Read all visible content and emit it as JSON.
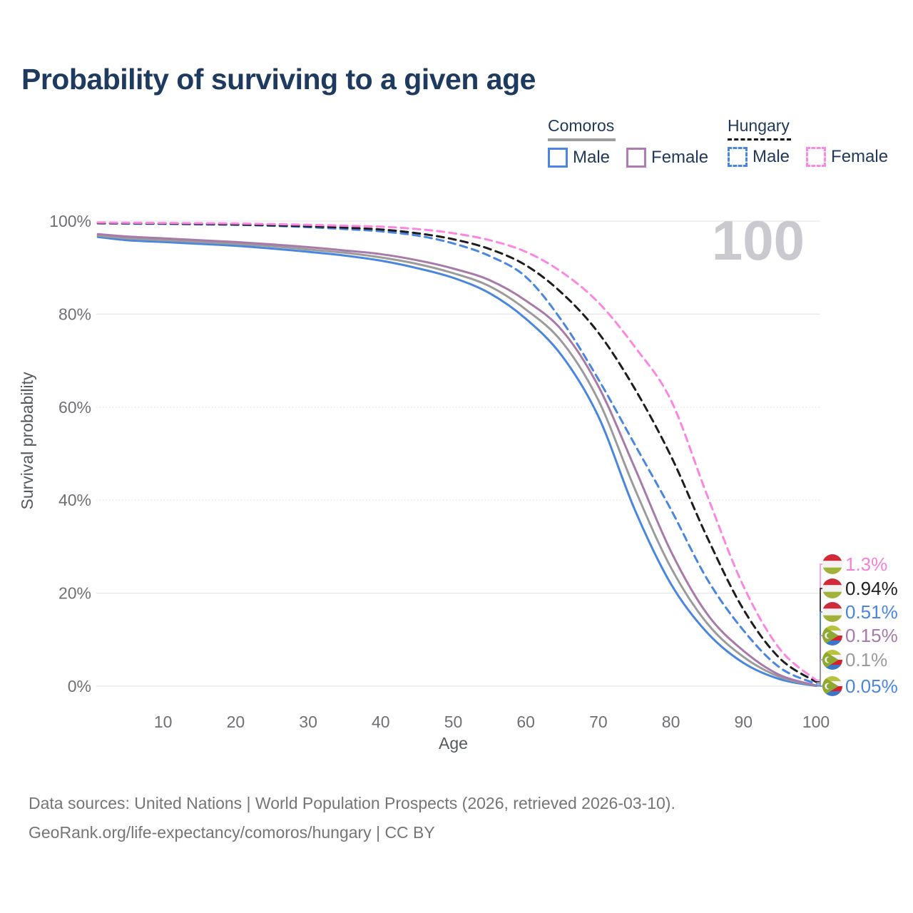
{
  "title": "Probability of surviving to a given age",
  "watermark": "100",
  "legend": {
    "groups": [
      {
        "name": "Comoros",
        "line_style": "solid",
        "underline_color": "#9e9e9e",
        "items": [
          {
            "label": "Male",
            "color": "#4a86e0",
            "dashed": false
          },
          {
            "label": "Female",
            "color": "#b07ab5",
            "dashed": false
          }
        ]
      },
      {
        "name": "Hungary",
        "line_style": "dashed",
        "underline_color": "#141414",
        "items": [
          {
            "label": "Male",
            "color": "#4a86e0",
            "dashed": true
          },
          {
            "label": "Female",
            "color": "#fb8ae4",
            "dashed": true
          }
        ]
      }
    ]
  },
  "axes": {
    "y_title": "Survival probability",
    "x_title": "Age",
    "y_ticks": [
      {
        "value": 0,
        "label": "0%",
        "style": "solid"
      },
      {
        "value": 20,
        "label": "20%",
        "style": "solid"
      },
      {
        "value": 40,
        "label": "40%",
        "style": "dotted"
      },
      {
        "value": 60,
        "label": "60%",
        "style": "dotted"
      },
      {
        "value": 80,
        "label": "80%",
        "style": "solid"
      },
      {
        "value": 100,
        "label": "100%",
        "style": "solid"
      }
    ],
    "x_ticks": [
      10,
      20,
      30,
      40,
      50,
      60,
      70,
      80,
      90,
      100
    ]
  },
  "chart_data": {
    "type": "line",
    "title": "Probability of surviving to a given age",
    "xlabel": "Age",
    "ylabel": "Survival probability",
    "xlim": [
      0,
      100
    ],
    "ylim": [
      0,
      100
    ],
    "y_unit": "%",
    "grid": true,
    "series": [
      {
        "name": "Comoros Male",
        "country": "Comoros",
        "sex": "Male",
        "color": "#4a86e0",
        "dashed": false,
        "points": [
          [
            1,
            96.6
          ],
          [
            5,
            95.9
          ],
          [
            10,
            95.5
          ],
          [
            15,
            95.1
          ],
          [
            20,
            94.7
          ],
          [
            25,
            94.1
          ],
          [
            30,
            93.4
          ],
          [
            35,
            92.6
          ],
          [
            40,
            91.5
          ],
          [
            45,
            89.9
          ],
          [
            50,
            87.8
          ],
          [
            55,
            84.5
          ],
          [
            60,
            79.0
          ],
          [
            65,
            71.0
          ],
          [
            70,
            58.0
          ],
          [
            75,
            38.0
          ],
          [
            80,
            22.0
          ],
          [
            85,
            11.5
          ],
          [
            90,
            5.0
          ],
          [
            95,
            1.5
          ],
          [
            100,
            0.05
          ]
        ]
      },
      {
        "name": "Comoros Both sexes",
        "country": "Comoros",
        "sex": "Both",
        "color": "#9b9b9b",
        "dashed": false,
        "points": [
          [
            1,
            96.9
          ],
          [
            5,
            96.3
          ],
          [
            10,
            95.9
          ],
          [
            15,
            95.5
          ],
          [
            20,
            95.1
          ],
          [
            25,
            94.6
          ],
          [
            30,
            93.9
          ],
          [
            35,
            93.2
          ],
          [
            40,
            92.2
          ],
          [
            45,
            90.8
          ],
          [
            50,
            88.8
          ],
          [
            55,
            86.0
          ],
          [
            60,
            81.0
          ],
          [
            65,
            74.0
          ],
          [
            70,
            61.5
          ],
          [
            75,
            42.5
          ],
          [
            80,
            25.5
          ],
          [
            85,
            13.5
          ],
          [
            90,
            6.3
          ],
          [
            95,
            2.0
          ],
          [
            100,
            0.1
          ]
        ]
      },
      {
        "name": "Comoros Female",
        "country": "Comoros",
        "sex": "Female",
        "color": "#a87aaa",
        "dashed": false,
        "points": [
          [
            1,
            97.2
          ],
          [
            5,
            96.7
          ],
          [
            10,
            96.3
          ],
          [
            15,
            95.9
          ],
          [
            20,
            95.5
          ],
          [
            25,
            95.0
          ],
          [
            30,
            94.4
          ],
          [
            35,
            93.7
          ],
          [
            40,
            92.9
          ],
          [
            45,
            91.6
          ],
          [
            50,
            89.8
          ],
          [
            55,
            87.3
          ],
          [
            60,
            82.9
          ],
          [
            65,
            76.5
          ],
          [
            70,
            64.5
          ],
          [
            75,
            47.0
          ],
          [
            80,
            29.0
          ],
          [
            85,
            15.5
          ],
          [
            90,
            7.6
          ],
          [
            95,
            2.4
          ],
          [
            100,
            0.15
          ]
        ]
      },
      {
        "name": "Hungary Male",
        "country": "Hungary",
        "sex": "Male",
        "color": "#4a86e0",
        "dashed": true,
        "points": [
          [
            1,
            99.5
          ],
          [
            5,
            99.45
          ],
          [
            10,
            99.4
          ],
          [
            15,
            99.3
          ],
          [
            20,
            99.2
          ],
          [
            25,
            99.0
          ],
          [
            30,
            98.7
          ],
          [
            35,
            98.3
          ],
          [
            40,
            97.8
          ],
          [
            45,
            96.9
          ],
          [
            50,
            95.2
          ],
          [
            55,
            92.5
          ],
          [
            60,
            88.0
          ],
          [
            65,
            78.5
          ],
          [
            70,
            66.0
          ],
          [
            75,
            52.0
          ],
          [
            80,
            38.0
          ],
          [
            85,
            23.0
          ],
          [
            90,
            12.0
          ],
          [
            95,
            4.0
          ],
          [
            100,
            0.51
          ]
        ]
      },
      {
        "name": "Hungary Both sexes",
        "country": "Hungary",
        "sex": "Both",
        "color": "#1d1d1d",
        "dashed": true,
        "points": [
          [
            1,
            99.6
          ],
          [
            5,
            99.55
          ],
          [
            10,
            99.5
          ],
          [
            15,
            99.4
          ],
          [
            20,
            99.3
          ],
          [
            25,
            99.1
          ],
          [
            30,
            98.9
          ],
          [
            35,
            98.6
          ],
          [
            40,
            98.2
          ],
          [
            45,
            97.4
          ],
          [
            50,
            96.1
          ],
          [
            55,
            94.0
          ],
          [
            60,
            90.5
          ],
          [
            65,
            84.5
          ],
          [
            70,
            76.0
          ],
          [
            75,
            64.0
          ],
          [
            80,
            49.5
          ],
          [
            85,
            32.0
          ],
          [
            90,
            16.5
          ],
          [
            95,
            6.0
          ],
          [
            100,
            0.94
          ]
        ]
      },
      {
        "name": "Hungary Female",
        "country": "Hungary",
        "sex": "Female",
        "color": "#fb87e3",
        "dashed": true,
        "points": [
          [
            1,
            99.7
          ],
          [
            5,
            99.65
          ],
          [
            10,
            99.6
          ],
          [
            15,
            99.55
          ],
          [
            20,
            99.5
          ],
          [
            25,
            99.35
          ],
          [
            30,
            99.2
          ],
          [
            35,
            99.0
          ],
          [
            40,
            98.8
          ],
          [
            45,
            98.3
          ],
          [
            50,
            97.4
          ],
          [
            55,
            95.9
          ],
          [
            60,
            93.4
          ],
          [
            65,
            89.0
          ],
          [
            70,
            82.5
          ],
          [
            75,
            73.0
          ],
          [
            80,
            61.5
          ],
          [
            85,
            41.0
          ],
          [
            90,
            21.5
          ],
          [
            95,
            8.0
          ],
          [
            100,
            1.3
          ]
        ]
      }
    ],
    "end_labels": [
      {
        "text": "1.3%",
        "series": "Hungary Female",
        "flag": "hu",
        "color": "#f580d9"
      },
      {
        "text": "0.94%",
        "series": "Hungary Both sexes",
        "flag": "hu",
        "color": "#222222"
      },
      {
        "text": "0.51%",
        "series": "Hungary Male",
        "flag": "hu",
        "color": "#4a86e0"
      },
      {
        "text": "0.15%",
        "series": "Comoros Female",
        "flag": "km",
        "color": "#a87aaa"
      },
      {
        "text": "0.1%",
        "series": "Comoros Both sexes",
        "flag": "km",
        "color": "#9b9b9b"
      },
      {
        "text": "0.05%",
        "series": "Comoros Male",
        "flag": "km",
        "color": "#4a86e0"
      }
    ],
    "hover_age": "100"
  },
  "footer": {
    "line1": "Data sources: United Nations | World Population Prospects (2026, retrieved 2026-03-10).",
    "line2": "GeoRank.org/life-expectancy/comoros/hungary | CC BY"
  }
}
